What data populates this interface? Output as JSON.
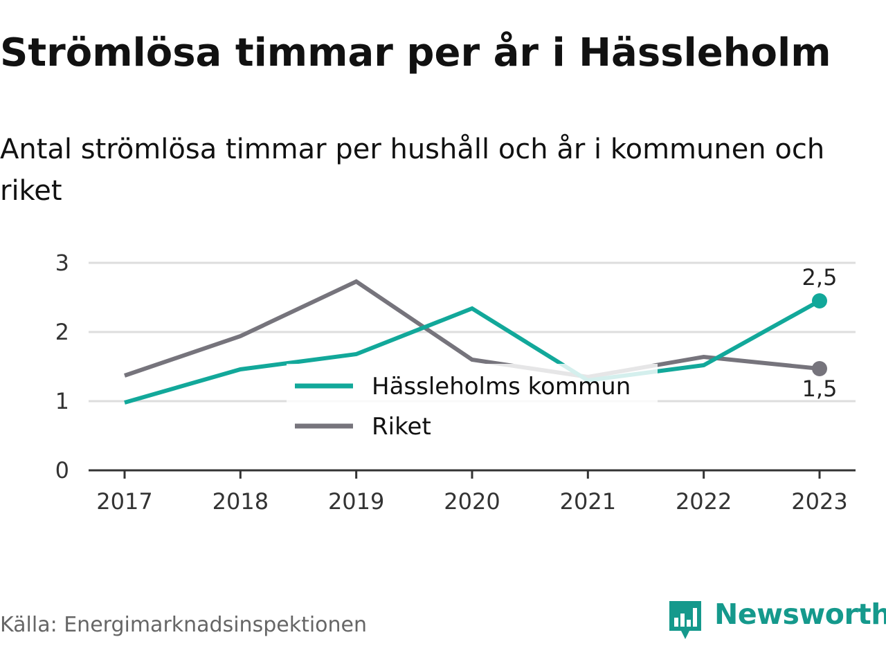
{
  "header": {
    "title": "Strömlösa timmar per år i Hässleholm",
    "subtitle": "Antal strömlösa timmar per hushåll och år i kommunen och riket"
  },
  "footer": {
    "source": "Källa: Energimarknadsinspektionen",
    "brand": "Newsworthy"
  },
  "colors": {
    "kommun": "#12a89a",
    "riket": "#76747c",
    "grid": "#dddddd",
    "axis": "#333333",
    "brand": "#15998c"
  },
  "chart_data": {
    "type": "line",
    "title": "Strömlösa timmar per år i Hässleholm",
    "subtitle": "Antal strömlösa timmar per hushåll och år i kommunen och riket",
    "x": [
      "2017",
      "2018",
      "2019",
      "2020",
      "2021",
      "2022",
      "2023"
    ],
    "ylim": [
      0,
      3
    ],
    "yticks": [
      "0",
      "1",
      "2",
      "3"
    ],
    "grid": true,
    "legend": "center",
    "series": [
      {
        "name": "Hässleholms kommun",
        "values": [
          0.98,
          1.46,
          1.68,
          2.34,
          1.3,
          1.52,
          2.45
        ],
        "end_label": "2,5"
      },
      {
        "name": "Riket",
        "values": [
          1.37,
          1.94,
          2.73,
          1.6,
          1.35,
          1.64,
          1.47
        ],
        "end_label": "1,5"
      }
    ]
  }
}
